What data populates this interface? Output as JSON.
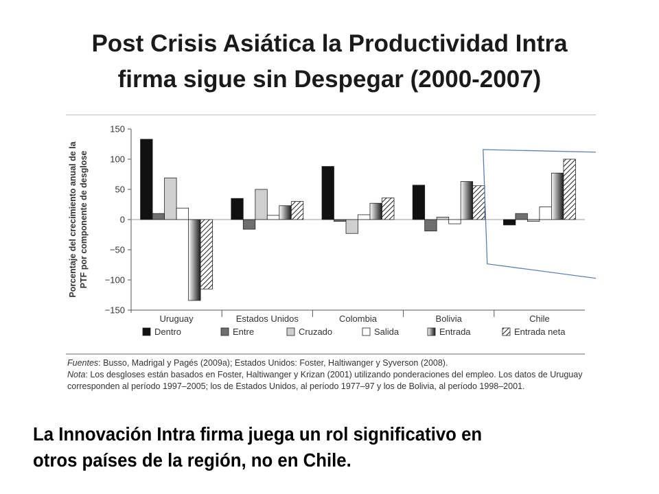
{
  "slide": {
    "title_line1": "Post Crisis Asiática la Productividad Intra",
    "title_line2": "firma sigue sin Despegar (2000-2007)",
    "caption_line1": "La Innovación Intra firma juega un rol significativo en",
    "caption_line2": "otros países de la región, no en Chile."
  },
  "notes": {
    "fuentes_label": "Fuentes",
    "fuentes_text": ": Busso, Madrigal y Pagés (2009a); Estados Unidos: Foster, Haltiwanger y Syverson (2008).",
    "nota_label": "Nota",
    "nota_text": ": Los desgloses están basados en Foster, Haltiwanger y Krizan (2001) utilizando ponderaciones del empleo. Los datos de Uruguay corresponden al período 1997–2005; los de Estados Unidos, al período 1977–97 y los de Bolivia, al período 1998–2001."
  },
  "colors": {
    "dentro": "#111111",
    "entre": "#6e6e6e",
    "cruzado": "#cfcfcf",
    "salida": "#ffffff",
    "entrada": "gradient-gray",
    "entrada_neta": "hatched",
    "annotation_outline": "#5b7fb5"
  },
  "chart_data": {
    "type": "bar",
    "title": "",
    "ylabel": "Porcentaje del crecimiento anual de la PTF por componente de desglose",
    "xlabel": "",
    "ylim": [
      -150,
      150
    ],
    "yticks": [
      150,
      100,
      50,
      0,
      -50,
      -100,
      -150
    ],
    "ytick_labels": [
      "150",
      "100",
      "50",
      "0",
      "−50",
      "−100",
      "−150"
    ],
    "categories": [
      "Uruguay",
      "Estados Unidos",
      "Colombia",
      "Bolivia",
      "Chile"
    ],
    "series": [
      {
        "name": "Dentro",
        "values": [
          133,
          35,
          88,
          57,
          -9
        ]
      },
      {
        "name": "Entre",
        "values": [
          10,
          -16,
          -3,
          -19,
          10
        ]
      },
      {
        "name": "Cruzado",
        "values": [
          69,
          50,
          -23,
          4,
          -3
        ]
      },
      {
        "name": "Salida",
        "values": [
          19,
          7,
          8,
          -7,
          21
        ]
      },
      {
        "name": "Entrada",
        "values": [
          -134,
          23,
          27,
          63,
          77
        ]
      },
      {
        "name": "Entrada neta",
        "values": [
          -115,
          30,
          36,
          56,
          100
        ]
      }
    ],
    "grid": false,
    "legend_position": "bottom",
    "highlight": "Chile"
  }
}
